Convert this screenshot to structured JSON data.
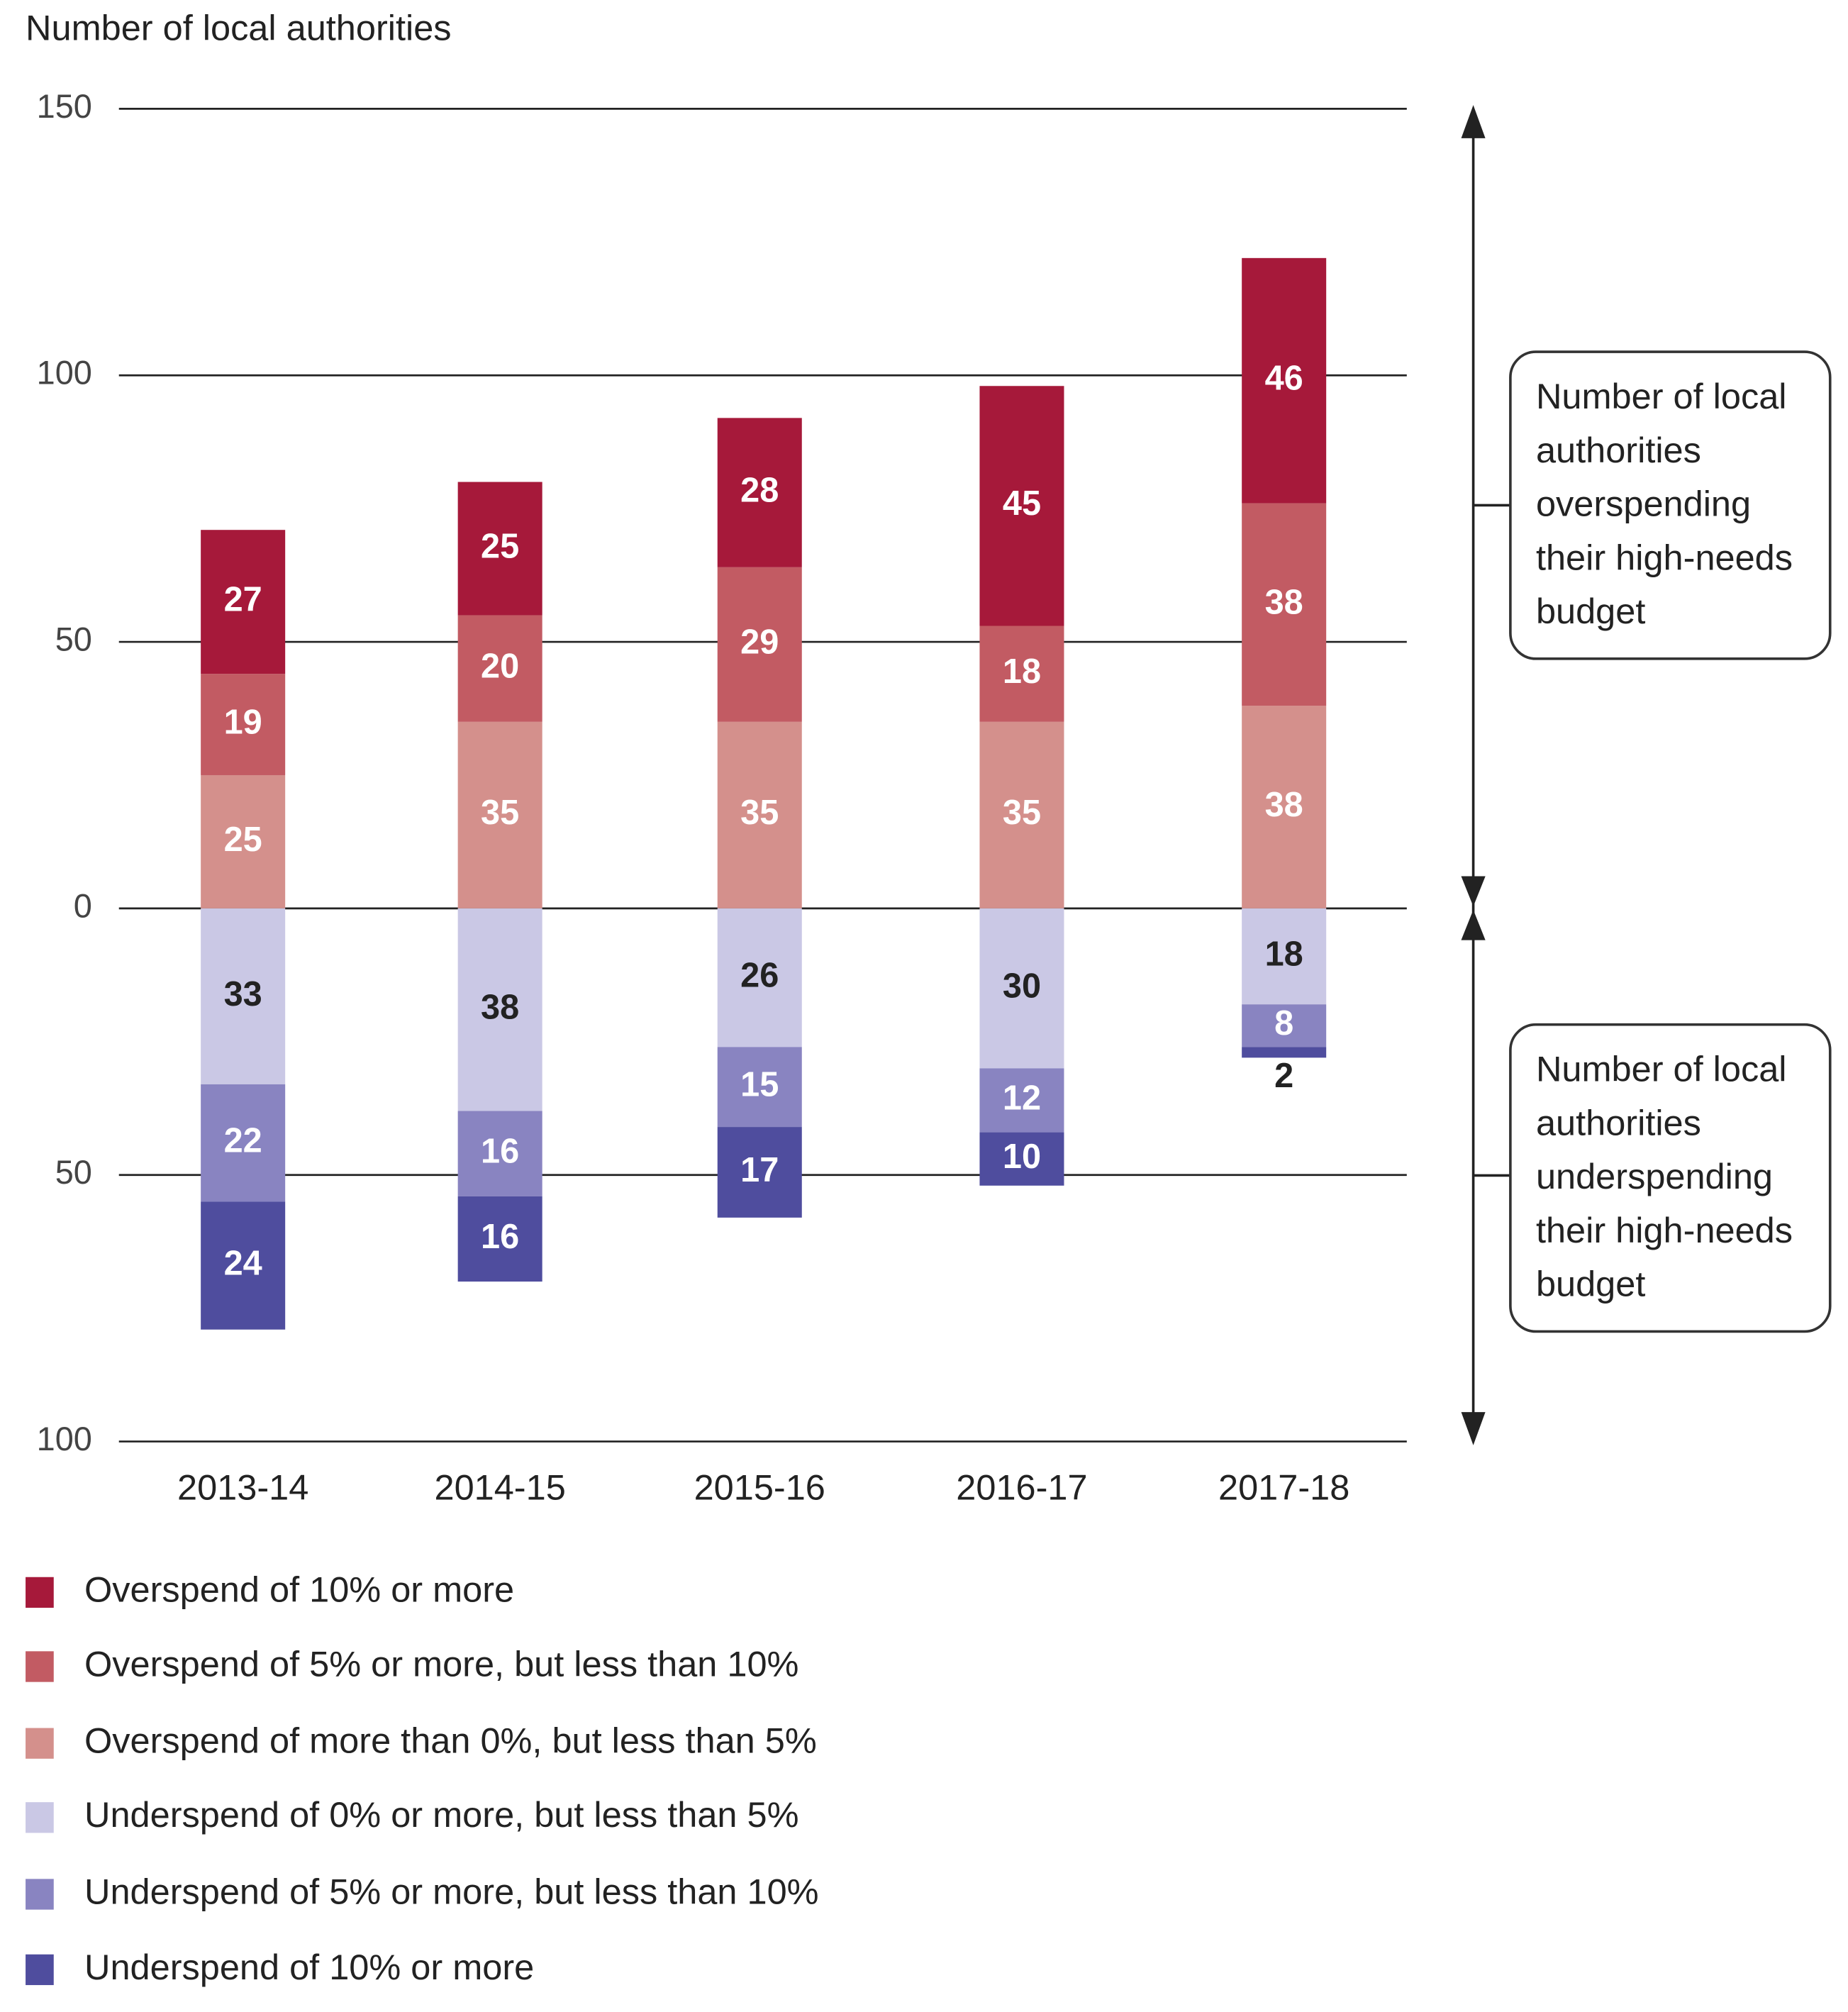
{
  "chart_data": {
    "type": "diverging_stacked_bar",
    "y_axis_label": "Number of local authorities",
    "categories": [
      "2013-14",
      "2014-15",
      "2015-16",
      "2016-17",
      "2017-18"
    ],
    "series": [
      {
        "name": "Overspend of 10% or more",
        "color": "#a6193a",
        "values": [
          27,
          25,
          28,
          45,
          46
        ]
      },
      {
        "name": "Overspend of 5% or more, but less than 10%",
        "color": "#c25b63",
        "values": [
          19,
          20,
          29,
          18,
          38
        ]
      },
      {
        "name": "Overspend of more than 0%, but less than 5%",
        "color": "#d4908c",
        "values": [
          25,
          35,
          35,
          35,
          38
        ]
      },
      {
        "name": "Underspend of 0% or more, but less than 5%",
        "color": "#cac8e5",
        "values": [
          -33,
          -38,
          -26,
          -30,
          -18
        ],
        "value_labels": [
          "33",
          "38",
          "26",
          "30",
          "18"
        ]
      },
      {
        "name": "Underspend of 5% or more, but less than 10%",
        "color": "#8984c1",
        "values": [
          -22,
          -16,
          -15,
          -12,
          -8
        ],
        "value_labels": [
          "22",
          "16",
          "15",
          "12",
          "8"
        ]
      },
      {
        "name": "Underspend of 10% or more",
        "color": "#4f4d9e",
        "values": [
          -24,
          -16,
          -17,
          -10,
          -2
        ],
        "value_labels": [
          "24",
          "16",
          "17",
          "10",
          "2"
        ]
      }
    ],
    "ylim": [
      -100,
      150
    ],
    "yticks": [
      {
        "value": -100,
        "label": "100"
      },
      {
        "value": -50,
        "label": "50"
      },
      0,
      50,
      100,
      150
    ],
    "grid": true,
    "annotations": [
      [
        "Number of local",
        "authorities",
        "overspending",
        "their high-needs",
        "budget"
      ],
      [
        "Number of local",
        "authorities",
        "underspending",
        "their high-needs",
        "budget"
      ]
    ]
  }
}
